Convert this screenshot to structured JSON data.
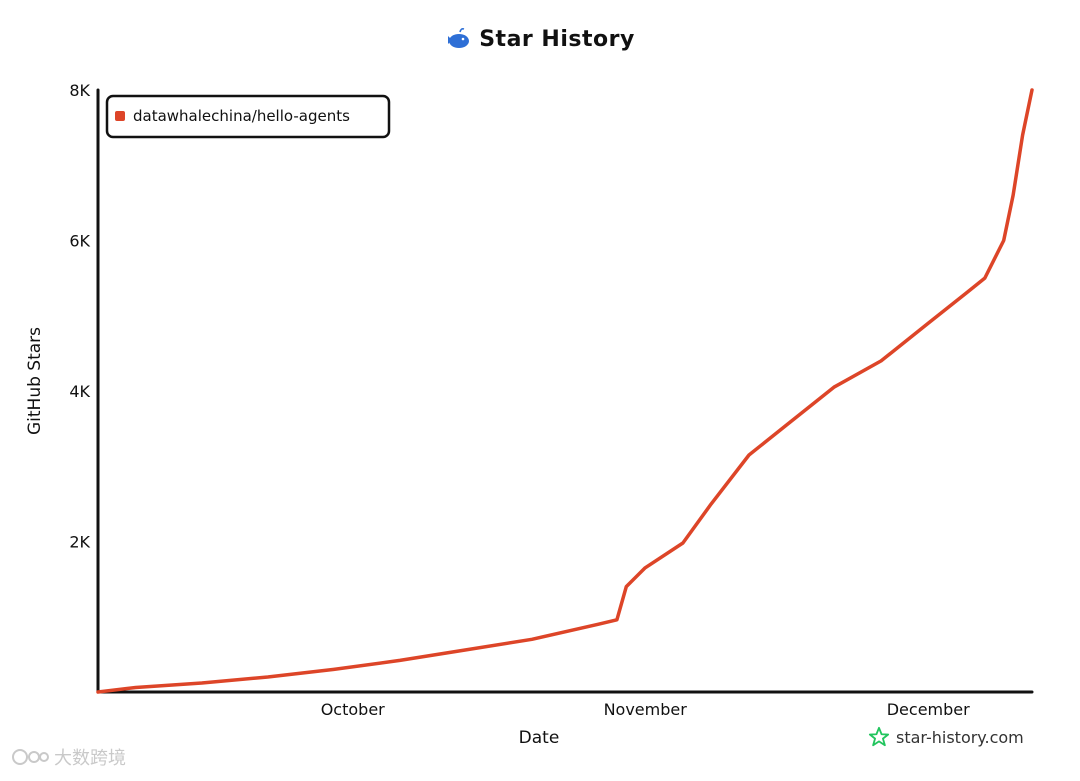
{
  "header": {
    "title": "Star History",
    "logo_icon": "whale-icon"
  },
  "chart_data": {
    "type": "line",
    "title": "Star History",
    "xlabel": "Date",
    "ylabel": "GitHub Stars",
    "x_tick_labels": [
      "October",
      "November",
      "December"
    ],
    "y_tick_labels": [
      "2K",
      "4K",
      "6K",
      "8K"
    ],
    "x_ticks": [
      "2025-10-01",
      "2025-11-01",
      "2025-12-01"
    ],
    "y_ticks": [
      2000,
      4000,
      6000,
      8000
    ],
    "ylim": [
      0,
      8000
    ],
    "xlim": [
      "2025-09-04",
      "2025-12-12"
    ],
    "legend_position": "top-left",
    "grid": false,
    "series": [
      {
        "name": "datawhalechina/hello-agents",
        "color": "#dd4528",
        "x": [
          "2025-09-04",
          "2025-09-08",
          "2025-09-15",
          "2025-09-22",
          "2025-09-29",
          "2025-10-06",
          "2025-10-13",
          "2025-10-20",
          "2025-10-27",
          "2025-10-29",
          "2025-10-30",
          "2025-11-01",
          "2025-11-05",
          "2025-11-08",
          "2025-11-12",
          "2025-11-16",
          "2025-11-21",
          "2025-11-26",
          "2025-12-01",
          "2025-12-05",
          "2025-12-07",
          "2025-12-09",
          "2025-12-10",
          "2025-12-11",
          "2025-12-12"
        ],
        "y": [
          0,
          60,
          120,
          200,
          300,
          420,
          560,
          700,
          900,
          960,
          1400,
          1650,
          1980,
          2500,
          3150,
          3550,
          4050,
          4400,
          4900,
          5300,
          5500,
          6000,
          6600,
          7400,
          8000
        ]
      }
    ]
  },
  "branding": {
    "site": "star-history.com",
    "icon": "star-outline-icon",
    "icon_color": "#22c55e"
  },
  "watermark": {
    "text": "大数跨境",
    "icon": "logo-mark-icon"
  }
}
